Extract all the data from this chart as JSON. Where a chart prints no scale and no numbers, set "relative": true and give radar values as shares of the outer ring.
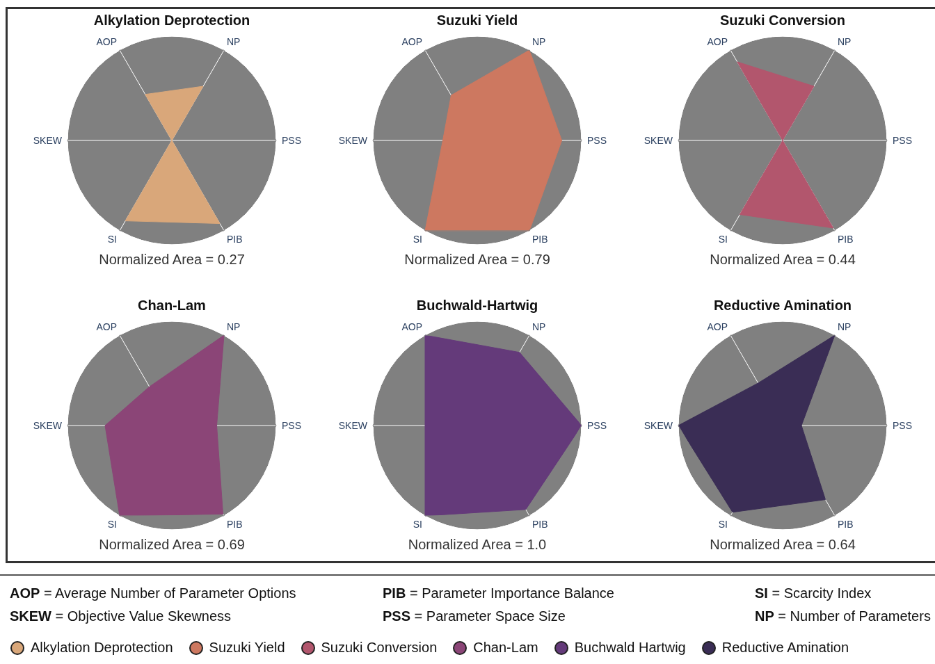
{
  "chart_data": [
    {
      "type": "radar",
      "title": "Alkylation Deprotection",
      "categories": [
        "NP",
        "PSS",
        "PIB",
        "SI",
        "SKEW",
        "AOP"
      ],
      "relative": true,
      "legend": "bottom",
      "annotations": [
        "Normalized Area = 0.27"
      ],
      "series": [
        {
          "name": "Alkylation Deprotection",
          "color": "#d9a77a",
          "values": [
            0.6,
            0,
            0.92,
            0.89,
            0,
            0.51
          ]
        }
      ]
    },
    {
      "type": "radar",
      "title": "Suzuki Yield",
      "categories": [
        "NP",
        "PSS",
        "PIB",
        "SI",
        "SKEW",
        "AOP"
      ],
      "relative": true,
      "legend": "bottom",
      "annotations": [
        "Normalized Area = 0.79"
      ],
      "series": [
        {
          "name": "Suzuki Yield",
          "color": "#cd7860",
          "values": [
            1,
            0.81,
            1,
            1,
            0.33,
            0.5
          ]
        }
      ]
    },
    {
      "type": "radar",
      "title": "Suzuki Conversion",
      "categories": [
        "NP",
        "PSS",
        "PIB",
        "SI",
        "SKEW",
        "AOP"
      ],
      "relative": true,
      "legend": "bottom",
      "annotations": [
        "Normalized Area = 0.44"
      ],
      "series": [
        {
          "name": "Suzuki Conversion",
          "color": "#b2566d",
          "values": [
            0.6,
            0,
            0.97,
            0.82,
            0,
            0.87
          ]
        }
      ]
    },
    {
      "type": "radar",
      "title": "Chan-Lam",
      "categories": [
        "NP",
        "PSS",
        "PIB",
        "SI",
        "SKEW",
        "AOP"
      ],
      "relative": true,
      "legend": "bottom",
      "annotations": [
        "Normalized Area = 0.69"
      ],
      "series": [
        {
          "name": "Chan-Lam",
          "color": "#8b4577",
          "values": [
            1,
            0.43,
            0.98,
            1,
            0.64,
            0.43
          ]
        }
      ]
    },
    {
      "type": "radar",
      "title": "Buchwald-Hartwig",
      "categories": [
        "NP",
        "PSS",
        "PIB",
        "SI",
        "SKEW",
        "AOP"
      ],
      "relative": true,
      "legend": "bottom",
      "annotations": [
        "Normalized Area = 1.0"
      ],
      "series": [
        {
          "name": "Buchwald Hartwig",
          "color": "#643a7a",
          "values": [
            0.81,
            1,
            0.93,
            1,
            0.5,
            1
          ]
        }
      ]
    },
    {
      "type": "radar",
      "title": "Reductive Amination",
      "categories": [
        "NP",
        "PSS",
        "PIB",
        "SI",
        "SKEW",
        "AOP"
      ],
      "relative": true,
      "legend": "bottom",
      "annotations": [
        "Normalized Area = 0.64"
      ],
      "series": [
        {
          "name": "Reductive Amination",
          "color": "#3a2d55",
          "values": [
            1,
            0.18,
            0.82,
            0.96,
            1,
            0.47
          ]
        }
      ]
    },
    {
      "type": "other",
      "annotations": [
        "AOP = Average Number of Parameter Options",
        "PIB = Parameter Importance Balance",
        "SI = Scarcity Index",
        "SKEW = Objective Value Skewness",
        "PSS = Parameter Space Size",
        "NP = Number of Parameters"
      ]
    }
  ]
}
